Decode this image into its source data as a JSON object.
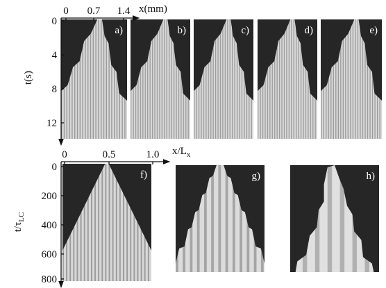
{
  "top": {
    "x_label": "x(mm)",
    "x_ticks": [
      "0",
      "0.7",
      "1.4"
    ],
    "y_label": "t(s)",
    "y_ticks": [
      "0",
      "4",
      "8",
      "12"
    ],
    "panels": [
      "a)",
      "b)",
      "c)",
      "d)",
      "e)"
    ]
  },
  "bottom": {
    "x_label": {
      "main": "x/L",
      "sub": "x"
    },
    "x_ticks": [
      "0",
      "0.5",
      "1.0"
    ],
    "y_label": {
      "main": "t/τ",
      "sub": "LC"
    },
    "y_ticks": [
      "0",
      "200",
      "400",
      "600",
      "800"
    ],
    "panels": [
      "f)",
      "g)",
      "h)"
    ]
  }
}
